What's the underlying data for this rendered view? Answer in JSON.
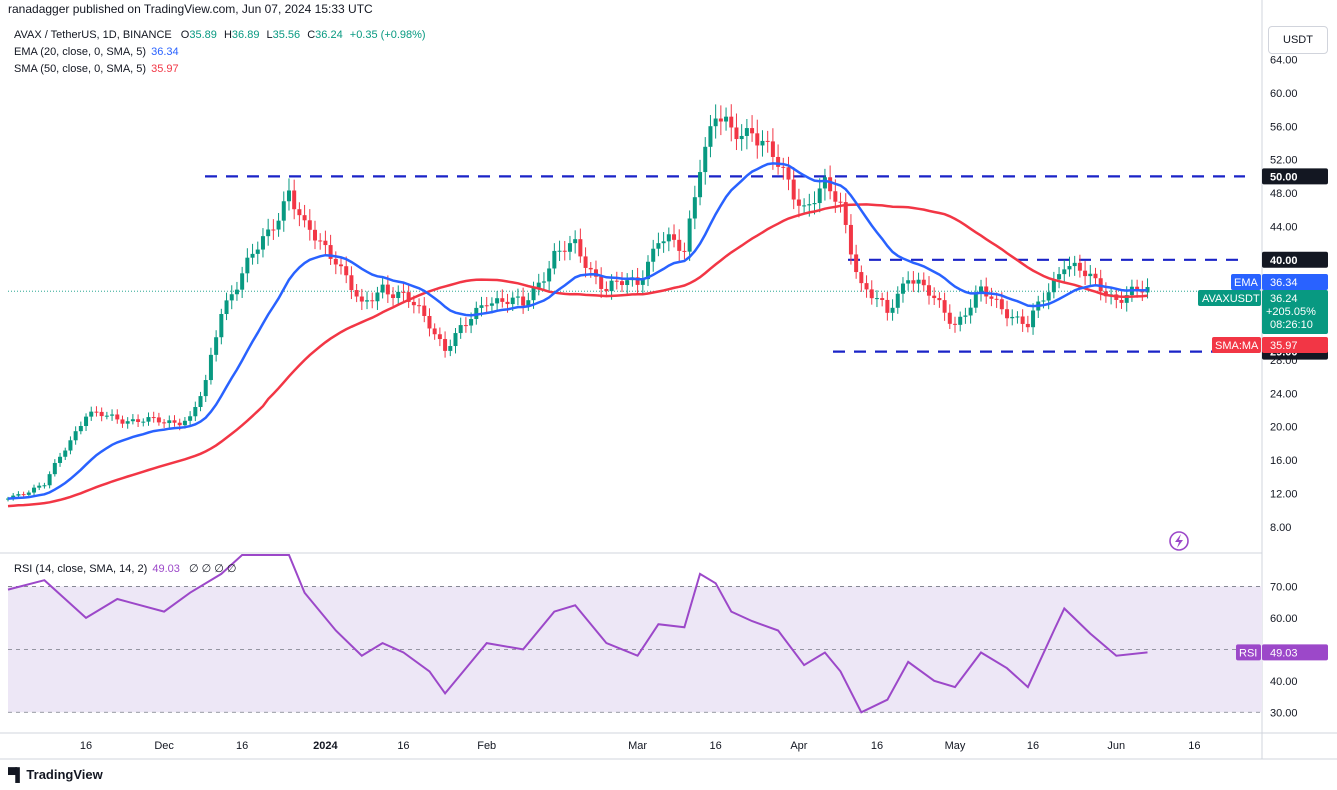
{
  "header": {
    "published": "ranadagger published on TradingView.com, Jun 07, 2024 15:33 UTC"
  },
  "legend": {
    "symbol": "AVAX / TetherUS, 1D, BINANCE",
    "o_label": "O",
    "o": "35.89",
    "h_label": "H",
    "h": "36.89",
    "l_label": "L",
    "l": "35.56",
    "c_label": "C",
    "c": "36.24",
    "change": "+0.35 (+0.98%)",
    "ema_label": "EMA (20, close, 0, SMA, 5)",
    "ema_value": "36.34",
    "sma_label": "SMA (50, close, 0, SMA, 5)",
    "sma_value": "35.97",
    "rsi_label": "RSI (14, close, SMA, 14, 2)",
    "rsi_value": "49.03",
    "rsi_extra": "∅ ∅ ∅ ∅"
  },
  "currency": "USDT",
  "footer": {
    "brand": "TradingView",
    "brand_icon": "tradingview-logo-icon"
  },
  "colors": {
    "up": "#089981",
    "down": "#f23645",
    "ema": "#2962ff",
    "sma": "#f23645",
    "levels": "#1a23c7",
    "rsi": "#9c48c9",
    "rsi_band": "#ede7f6",
    "label_bg": "#131722"
  },
  "price_labels": {
    "ema": {
      "tag": "EMA",
      "value": "36.34"
    },
    "pair": {
      "tag": "AVAXUSDT",
      "value": "36.24",
      "change": "+205.05%",
      "countdown": "08:26:10"
    },
    "sma": {
      "tag": "SMA:MA",
      "value": "35.97"
    },
    "level_50": "50.00",
    "level_40": "40.00",
    "level_29": "29.00",
    "rsi": {
      "tag": "RSI",
      "value": "49.03"
    }
  },
  "chart_data": [
    {
      "type": "candlestick",
      "title": "AVAX / TetherUS, 1D, BINANCE",
      "yaxis_ticks": [
        "64.00",
        "60.00",
        "56.00",
        "52.00",
        "48.00",
        "44.00",
        "40.00",
        "36.00",
        "32.00",
        "28.00",
        "24.00",
        "20.00",
        "16.00",
        "12.00",
        "8.00"
      ],
      "ylim": [
        6.3,
        68.5
      ],
      "xaxis_ticks": [
        "16",
        "Dec",
        "16",
        "2024",
        "16",
        "Feb",
        "Mar",
        "16",
        "Apr",
        "16",
        "May",
        "16",
        "Jun",
        "16"
      ],
      "xaxis_dates": [
        "2023-11-16",
        "2023-12-01",
        "2023-12-16",
        "2024-01-01",
        "2024-01-16",
        "2024-02-01",
        "2024-03-01",
        "2024-03-16",
        "2024-04-01",
        "2024-04-16",
        "2024-05-01",
        "2024-05-16",
        "2024-06-01",
        "2024-06-16"
      ],
      "date_range": [
        "2023-11-01",
        "2024-06-07"
      ],
      "horizontal_levels": [
        50.0,
        40.0,
        29.0
      ],
      "close_approx": [
        [
          "2023-11-01",
          11.5
        ],
        [
          "2023-11-08",
          13.0
        ],
        [
          "2023-11-12",
          17.5
        ],
        [
          "2023-11-16",
          21.5
        ],
        [
          "2023-11-22",
          21.0
        ],
        [
          "2023-12-01",
          20.5
        ],
        [
          "2023-12-06",
          21.0
        ],
        [
          "2023-12-09",
          25.0
        ],
        [
          "2023-12-12",
          34.0
        ],
        [
          "2023-12-16",
          38.5
        ],
        [
          "2023-12-21",
          43.0
        ],
        [
          "2023-12-25",
          48.5
        ],
        [
          "2023-12-28",
          43.5
        ],
        [
          "2024-01-03",
          40.5
        ],
        [
          "2024-01-08",
          34.0
        ],
        [
          "2024-01-12",
          37.0
        ],
        [
          "2024-01-16",
          35.5
        ],
        [
          "2024-01-21",
          32.5
        ],
        [
          "2024-01-24",
          29.5
        ],
        [
          "2024-01-28",
          32.0
        ],
        [
          "2024-02-01",
          35.5
        ],
        [
          "2024-02-08",
          34.5
        ],
        [
          "2024-02-14",
          40.5
        ],
        [
          "2024-02-18",
          41.5
        ],
        [
          "2024-02-24",
          36.5
        ],
        [
          "2024-03-01",
          37.5
        ],
        [
          "2024-03-05",
          42.5
        ],
        [
          "2024-03-10",
          41.0
        ],
        [
          "2024-03-13",
          52.0
        ],
        [
          "2024-03-16",
          57.0
        ],
        [
          "2024-03-19",
          55.0
        ],
        [
          "2024-03-23",
          56.0
        ],
        [
          "2024-03-28",
          51.0
        ],
        [
          "2024-04-02",
          46.5
        ],
        [
          "2024-04-06",
          48.5
        ],
        [
          "2024-04-09",
          46.5
        ],
        [
          "2024-04-13",
          37.0
        ],
        [
          "2024-04-18",
          33.5
        ],
        [
          "2024-04-22",
          38.5
        ],
        [
          "2024-04-27",
          35.0
        ],
        [
          "2024-05-01",
          32.5
        ],
        [
          "2024-05-06",
          36.0
        ],
        [
          "2024-05-11",
          34.0
        ],
        [
          "2024-05-15",
          32.0
        ],
        [
          "2024-05-20",
          37.5
        ],
        [
          "2024-05-22",
          40.0
        ],
        [
          "2024-05-27",
          37.5
        ],
        [
          "2024-06-01",
          35.5
        ],
        [
          "2024-06-07",
          36.24
        ]
      ],
      "series": [
        {
          "name": "EMA (20, close, 0, SMA, 5)",
          "last": 36.34
        },
        {
          "name": "SMA (50, close, 0, SMA, 5)",
          "last": 35.97
        }
      ]
    },
    {
      "type": "line",
      "title": "RSI (14, close, SMA, 14, 2)",
      "yaxis_ticks": [
        "70.00",
        "60.00",
        "50.00",
        "40.00",
        "30.00"
      ],
      "ylim": [
        25,
        80
      ],
      "band": [
        30,
        70
      ],
      "series": [
        {
          "name": "RSI",
          "last": 49.03,
          "values_approx": [
            [
              "2023-11-01",
              69
            ],
            [
              "2023-11-08",
              72
            ],
            [
              "2023-11-16",
              60
            ],
            [
              "2023-11-22",
              66
            ],
            [
              "2023-12-01",
              62
            ],
            [
              "2023-12-06",
              68
            ],
            [
              "2023-12-12",
              74
            ],
            [
              "2023-12-16",
              82
            ],
            [
              "2023-12-25",
              85
            ],
            [
              "2023-12-28",
              68
            ],
            [
              "2024-01-03",
              56
            ],
            [
              "2024-01-08",
              48
            ],
            [
              "2024-01-12",
              52
            ],
            [
              "2024-01-16",
              49
            ],
            [
              "2024-01-21",
              43
            ],
            [
              "2024-01-24",
              36
            ],
            [
              "2024-01-28",
              44
            ],
            [
              "2024-02-01",
              52
            ],
            [
              "2024-02-08",
              50
            ],
            [
              "2024-02-14",
              62
            ],
            [
              "2024-02-18",
              64
            ],
            [
              "2024-02-24",
              52
            ],
            [
              "2024-03-01",
              48
            ],
            [
              "2024-03-05",
              58
            ],
            [
              "2024-03-10",
              57
            ],
            [
              "2024-03-13",
              74
            ],
            [
              "2024-03-16",
              71
            ],
            [
              "2024-03-19",
              62
            ],
            [
              "2024-03-23",
              59
            ],
            [
              "2024-03-28",
              56
            ],
            [
              "2024-04-02",
              45
            ],
            [
              "2024-04-06",
              49
            ],
            [
              "2024-04-09",
              43
            ],
            [
              "2024-04-13",
              30
            ],
            [
              "2024-04-18",
              34
            ],
            [
              "2024-04-22",
              46
            ],
            [
              "2024-04-27",
              40
            ],
            [
              "2024-05-01",
              38
            ],
            [
              "2024-05-06",
              49
            ],
            [
              "2024-05-11",
              44
            ],
            [
              "2024-05-15",
              38
            ],
            [
              "2024-05-20",
              56
            ],
            [
              "2024-05-22",
              63
            ],
            [
              "2024-05-27",
              55
            ],
            [
              "2024-06-01",
              48
            ],
            [
              "2024-06-07",
              49.03
            ]
          ]
        }
      ]
    }
  ]
}
